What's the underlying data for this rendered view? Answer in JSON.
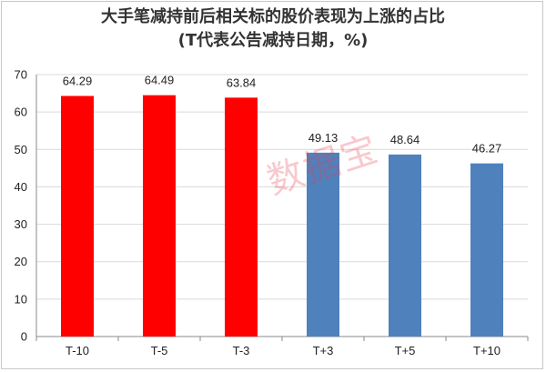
{
  "title_line1": "大手笔减持前后相关标的股价表现为上涨的占比",
  "title_line2": "(T代表公告减持日期，%)",
  "watermark": "数据宝",
  "colors": {
    "before": "#ff0000",
    "after": "#4f81bd",
    "gridline": "#d9d9d9",
    "axis": "#888888"
  },
  "chart_data": {
    "type": "bar",
    "title": "大手笔减持前后相关标的股价表现为上涨的占比 (T代表公告减持日期，%)",
    "categories": [
      "T-10",
      "T-5",
      "T-3",
      "T+3",
      "T+5",
      "T+10"
    ],
    "values": [
      64.29,
      64.49,
      63.84,
      49.13,
      48.64,
      46.27
    ],
    "value_labels": [
      "64.29",
      "64.49",
      "63.84",
      "49.13",
      "48.64",
      "46.27"
    ],
    "bar_colors": [
      "#ff0000",
      "#ff0000",
      "#ff0000",
      "#4f81bd",
      "#4f81bd",
      "#4f81bd"
    ],
    "ylim": [
      0,
      70
    ],
    "yticks": [
      0,
      10,
      20,
      30,
      40,
      50,
      60,
      70
    ],
    "xlabel": "",
    "ylabel": "",
    "grid": true,
    "legend": "none"
  }
}
